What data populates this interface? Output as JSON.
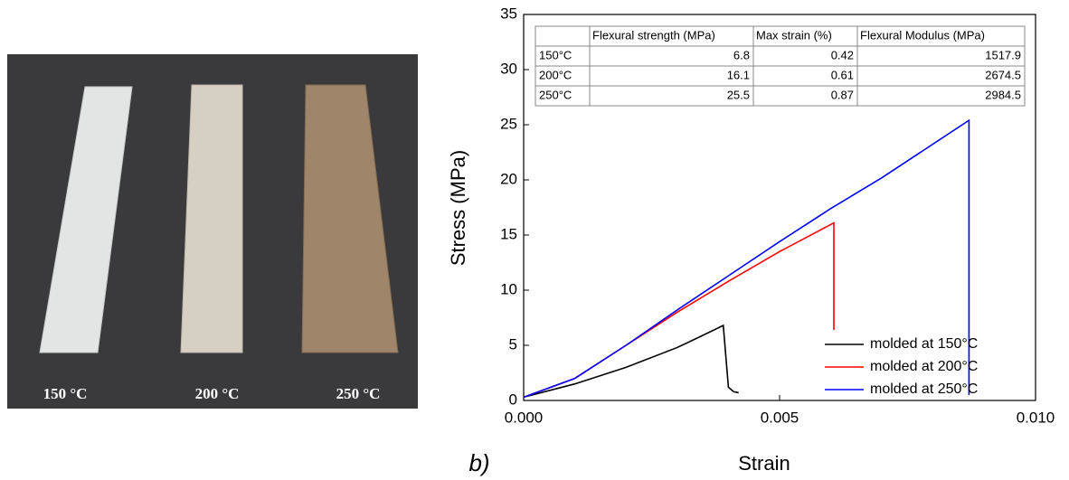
{
  "photo": {
    "labels": [
      "150 °C",
      "200 °C",
      "250 °C"
    ]
  },
  "panel_label": "b)",
  "chart_data": {
    "type": "line",
    "xlabel": "Strain",
    "ylabel": "Stress (MPa)",
    "xlim": [
      0,
      0.01
    ],
    "ylim": [
      0,
      35
    ],
    "xticks": [
      {
        "value": 0,
        "label": "0.000"
      },
      {
        "value": 0.005,
        "label": "0.005"
      },
      {
        "value": 0.01,
        "label": "0.010"
      }
    ],
    "yticks": [
      0,
      5,
      10,
      15,
      20,
      25,
      30,
      35
    ],
    "legend": "lower right",
    "series": [
      {
        "name": "molded at 150°C",
        "color": "#000000",
        "x": [
          0,
          0.001,
          0.002,
          0.003,
          0.0035,
          0.0039,
          0.00395,
          0.004,
          0.0041,
          0.0042
        ],
        "values": [
          0.3,
          1.5,
          3.0,
          4.8,
          5.9,
          6.8,
          4.0,
          1.2,
          0.8,
          0.7
        ]
      },
      {
        "name": "molded at 200°C",
        "color": "#ff0000",
        "x": [
          0,
          0.001,
          0.002,
          0.003,
          0.004,
          0.005,
          0.00606,
          0.00606
        ],
        "values": [
          0.3,
          2.0,
          5.0,
          8.0,
          10.8,
          13.5,
          16.1,
          6.4
        ]
      },
      {
        "name": "molded at 250°C",
        "color": "#0000ff",
        "x": [
          0,
          0.001,
          0.002,
          0.003,
          0.004,
          0.005,
          0.006,
          0.007,
          0.0087,
          0.0087
        ],
        "values": [
          0.3,
          2.0,
          5.0,
          8.2,
          11.3,
          14.4,
          17.4,
          20.2,
          25.4,
          0.5
        ]
      }
    ],
    "table": {
      "header": [
        "Flexural strength (MPa)",
        "Max strain (%)",
        "Flexural Modulus (MPa)"
      ],
      "rows": [
        [
          "150°C",
          "6.8",
          "0.42",
          "1517.9"
        ],
        [
          "200°C",
          "16.1",
          "0.61",
          "2674.5"
        ],
        [
          "250°C",
          "25.5",
          "0.87",
          "2984.5"
        ]
      ]
    }
  }
}
